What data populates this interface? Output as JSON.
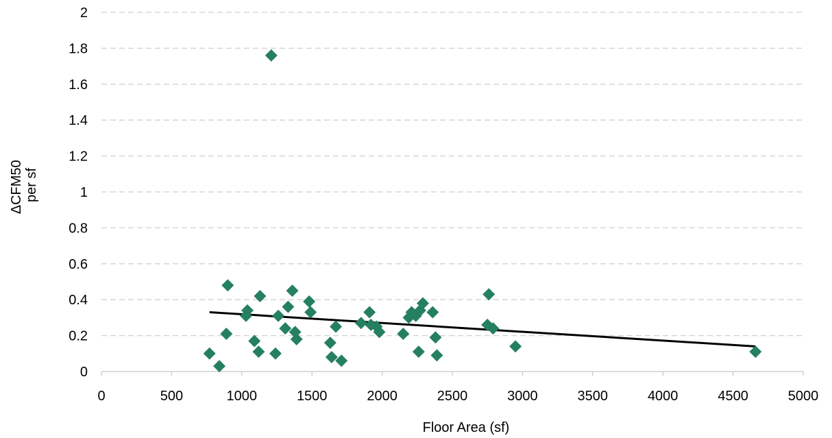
{
  "chart_data": {
    "type": "scatter",
    "title": "",
    "xlabel": "Floor Area (sf)",
    "ylabel_lines": [
      "ΔCFM50",
      "per sf"
    ],
    "xlim": [
      0,
      5000
    ],
    "ylim": [
      0,
      2
    ],
    "x_ticks": [
      "0",
      "500",
      "1000",
      "1500",
      "2000",
      "2500",
      "3000",
      "3500",
      "4000",
      "4500",
      "5000"
    ],
    "y_ticks": [
      "0",
      "0.2",
      "0.4",
      "0.6",
      "0.8",
      "1",
      "1.2",
      "1.4",
      "1.6",
      "1.8",
      "2"
    ],
    "grid": "horizontal dashed",
    "legend": "none",
    "colors": {
      "marker": "#25805f",
      "trendline": "#000000",
      "grid": "#d0d0d0",
      "axis": "#c8c8c8"
    },
    "series": [
      {
        "marker": "diamond",
        "points": [
          [
            770,
            0.1
          ],
          [
            840,
            0.03
          ],
          [
            890,
            0.21
          ],
          [
            900,
            0.48
          ],
          [
            1030,
            0.31
          ],
          [
            1040,
            0.34
          ],
          [
            1090,
            0.17
          ],
          [
            1120,
            0.11
          ],
          [
            1130,
            0.42
          ],
          [
            1210,
            1.76
          ],
          [
            1240,
            0.1
          ],
          [
            1260,
            0.31
          ],
          [
            1310,
            0.24
          ],
          [
            1330,
            0.36
          ],
          [
            1360,
            0.45
          ],
          [
            1380,
            0.22
          ],
          [
            1390,
            0.18
          ],
          [
            1480,
            0.39
          ],
          [
            1490,
            0.33
          ],
          [
            1630,
            0.16
          ],
          [
            1640,
            0.08
          ],
          [
            1670,
            0.25
          ],
          [
            1710,
            0.06
          ],
          [
            1850,
            0.27
          ],
          [
            1910,
            0.33
          ],
          [
            1920,
            0.26
          ],
          [
            1960,
            0.25
          ],
          [
            1980,
            0.22
          ],
          [
            2150,
            0.21
          ],
          [
            2190,
            0.3
          ],
          [
            2210,
            0.33
          ],
          [
            2240,
            0.31
          ],
          [
            2260,
            0.11
          ],
          [
            2270,
            0.34
          ],
          [
            2290,
            0.38
          ],
          [
            2360,
            0.33
          ],
          [
            2380,
            0.19
          ],
          [
            2390,
            0.09
          ],
          [
            2750,
            0.26
          ],
          [
            2760,
            0.43
          ],
          [
            2790,
            0.24
          ],
          [
            2950,
            0.14
          ],
          [
            4660,
            0.11
          ]
        ]
      }
    ],
    "trendline": {
      "x": [
        770,
        4660
      ],
      "y": [
        0.33,
        0.14
      ]
    }
  }
}
